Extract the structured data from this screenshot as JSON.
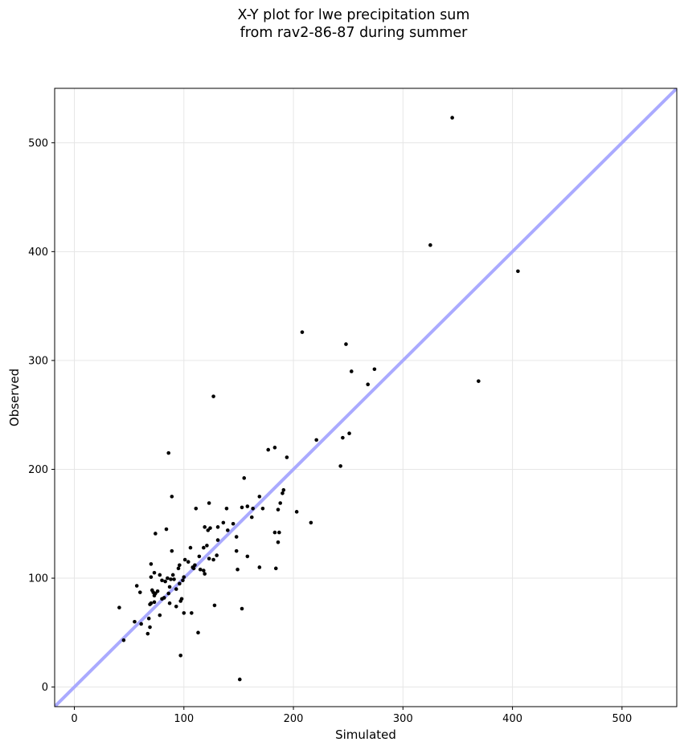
{
  "chart_data": {
    "type": "scatter",
    "title_line1": "X-Y plot for lwe precipitation sum",
    "title_line2": "from rav2-86-87 during summer",
    "xlabel": "Simulated",
    "ylabel": "Observed",
    "xlim": [
      -18,
      550
    ],
    "ylim": [
      -18,
      550
    ],
    "xticks": [
      0,
      100,
      200,
      300,
      400,
      500
    ],
    "yticks": [
      0,
      100,
      200,
      300,
      400,
      500
    ],
    "grid": true,
    "reference_line": {
      "type": "y=x",
      "color": "#aaaaff"
    },
    "point_color": "#000000",
    "points": [
      [
        345,
        523
      ],
      [
        325,
        406
      ],
      [
        405,
        382
      ],
      [
        369,
        281
      ],
      [
        208,
        326
      ],
      [
        248,
        315
      ],
      [
        253,
        290
      ],
      [
        274,
        292
      ],
      [
        268,
        278
      ],
      [
        127,
        267
      ],
      [
        221,
        227
      ],
      [
        251,
        233
      ],
      [
        245,
        229
      ],
      [
        243,
        203
      ],
      [
        177,
        218
      ],
      [
        183,
        220
      ],
      [
        194,
        211
      ],
      [
        86,
        215
      ],
      [
        155,
        192
      ],
      [
        191,
        181
      ],
      [
        190,
        178
      ],
      [
        169,
        175
      ],
      [
        89,
        175
      ],
      [
        188,
        169
      ],
      [
        123,
        169
      ],
      [
        111,
        164
      ],
      [
        139,
        164
      ],
      [
        158,
        166
      ],
      [
        153,
        165
      ],
      [
        163,
        164
      ],
      [
        172,
        164
      ],
      [
        186,
        163
      ],
      [
        203,
        161
      ],
      [
        162,
        156
      ],
      [
        136,
        151
      ],
      [
        145,
        150
      ],
      [
        131,
        147
      ],
      [
        119,
        147
      ],
      [
        124,
        146
      ],
      [
        122,
        144
      ],
      [
        140,
        144
      ],
      [
        84,
        145
      ],
      [
        74,
        141
      ],
      [
        183,
        142
      ],
      [
        187,
        142
      ],
      [
        216,
        151
      ],
      [
        186,
        133
      ],
      [
        184,
        109
      ],
      [
        169,
        110
      ],
      [
        158,
        120
      ],
      [
        148,
        125
      ],
      [
        148,
        138
      ],
      [
        131,
        135
      ],
      [
        114,
        120
      ],
      [
        121,
        130
      ],
      [
        118,
        128
      ],
      [
        106,
        128
      ],
      [
        89,
        125
      ],
      [
        101,
        117
      ],
      [
        104,
        115
      ],
      [
        110,
        112
      ],
      [
        108,
        110
      ],
      [
        109,
        109
      ],
      [
        115,
        108
      ],
      [
        118,
        107
      ],
      [
        119,
        104
      ],
      [
        123,
        118
      ],
      [
        127,
        117
      ],
      [
        130,
        121
      ],
      [
        149,
        108
      ],
      [
        96,
        112
      ],
      [
        95,
        109
      ],
      [
        90,
        103
      ],
      [
        88,
        99
      ],
      [
        85,
        100
      ],
      [
        80,
        98
      ],
      [
        78,
        103
      ],
      [
        83,
        97
      ],
      [
        73,
        105
      ],
      [
        70,
        101
      ],
      [
        70,
        113
      ],
      [
        100,
        101
      ],
      [
        99,
        98
      ],
      [
        96,
        95
      ],
      [
        93,
        90
      ],
      [
        91,
        99
      ],
      [
        87,
        92
      ],
      [
        57,
        93
      ],
      [
        60,
        87
      ],
      [
        71,
        89
      ],
      [
        72,
        87
      ],
      [
        74,
        86
      ],
      [
        73,
        84
      ],
      [
        76,
        88
      ],
      [
        86,
        86
      ],
      [
        82,
        82
      ],
      [
        80,
        81
      ],
      [
        73,
        78
      ],
      [
        70,
        77
      ],
      [
        69,
        76
      ],
      [
        98,
        81
      ],
      [
        97,
        79
      ],
      [
        93,
        74
      ],
      [
        87,
        77
      ],
      [
        128,
        75
      ],
      [
        153,
        72
      ],
      [
        41,
        73
      ],
      [
        100,
        68
      ],
      [
        107,
        68
      ],
      [
        78,
        66
      ],
      [
        68,
        63
      ],
      [
        55,
        60
      ],
      [
        61,
        58
      ],
      [
        69,
        55
      ],
      [
        113,
        50
      ],
      [
        67,
        49
      ],
      [
        45,
        43
      ],
      [
        97,
        29
      ],
      [
        151,
        7
      ]
    ]
  }
}
